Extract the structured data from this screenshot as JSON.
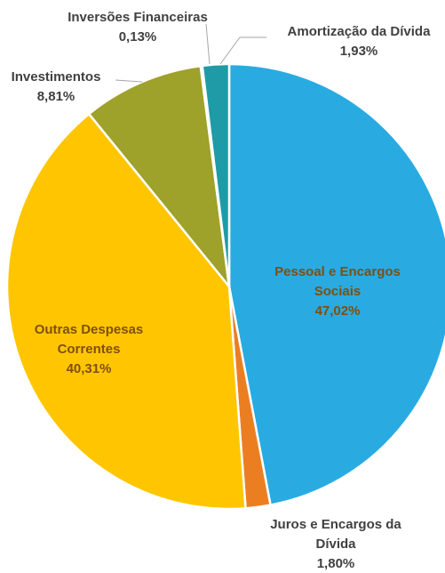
{
  "chart_data": {
    "type": "pie",
    "start": "top",
    "direction": "clockwise",
    "slices": [
      {
        "label": [
          "Pessoal e Encargos",
          "Sociais"
        ],
        "value": 47.02,
        "value_label": "47,02%",
        "color": "#29ABE2",
        "label_color": "#7F4F0F"
      },
      {
        "label": [
          "Juros e Encargos da",
          "Dívida"
        ],
        "value": 1.8,
        "value_label": "1,80%",
        "color": "#EC7E22",
        "label_color": "#404040"
      },
      {
        "label": [
          "Outras Despesas",
          "Correntes"
        ],
        "value": 40.31,
        "value_label": "40,31%",
        "color": "#FFC600",
        "label_color": "#7F4F0F"
      },
      {
        "label": [
          "Investimentos"
        ],
        "value": 8.81,
        "value_label": "8,81%",
        "color": "#9EA12A",
        "label_color": "#404040"
      },
      {
        "label": [
          "Inversões Financeiras"
        ],
        "value": 0.13,
        "value_label": "0,13%",
        "color": "#1F5E7A",
        "label_color": "#404040"
      },
      {
        "label": [
          "Amortização da Dívida"
        ],
        "value": 1.93,
        "value_label": "1,93%",
        "color": "#1E9BA6",
        "label_color": "#404040"
      }
    ]
  }
}
